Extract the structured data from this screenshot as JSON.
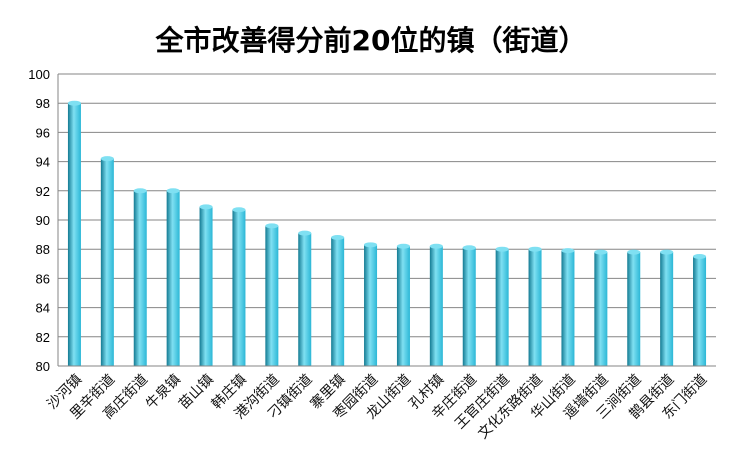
{
  "chart_data": {
    "type": "bar",
    "title": "全市改善得分前20位的镇（街道）",
    "xlabel": "",
    "ylabel": "",
    "ylim": [
      80,
      100
    ],
    "ytick_step": 2,
    "yticks": [
      "80",
      "82",
      "84",
      "86",
      "88",
      "90",
      "92",
      "94",
      "96",
      "98",
      "100"
    ],
    "grid": true,
    "legend": "none",
    "bar_color": "#2bb7d6",
    "bar_color_dark": "#137a92",
    "bar_color_light": "#7fe0f2",
    "categories": [
      "沙河镇",
      "里辛街道",
      "高庄街道",
      "牛泉镇",
      "苗山镇",
      "韩庄镇",
      "港沟街道",
      "刁镇街道",
      "寨里镇",
      "枣园街道",
      "龙山街道",
      "孔村镇",
      "辛庄街道",
      "王官庄街道",
      "文化东路街道",
      "华山街道",
      "遥墙街道",
      "三涧街道",
      "鹊县街道",
      "东门街道"
    ],
    "values": [
      98.0,
      94.2,
      92.0,
      92.0,
      90.9,
      90.7,
      89.6,
      89.1,
      88.8,
      88.3,
      88.2,
      88.2,
      88.1,
      88.0,
      88.0,
      87.9,
      87.8,
      87.8,
      87.8,
      87.5
    ]
  }
}
